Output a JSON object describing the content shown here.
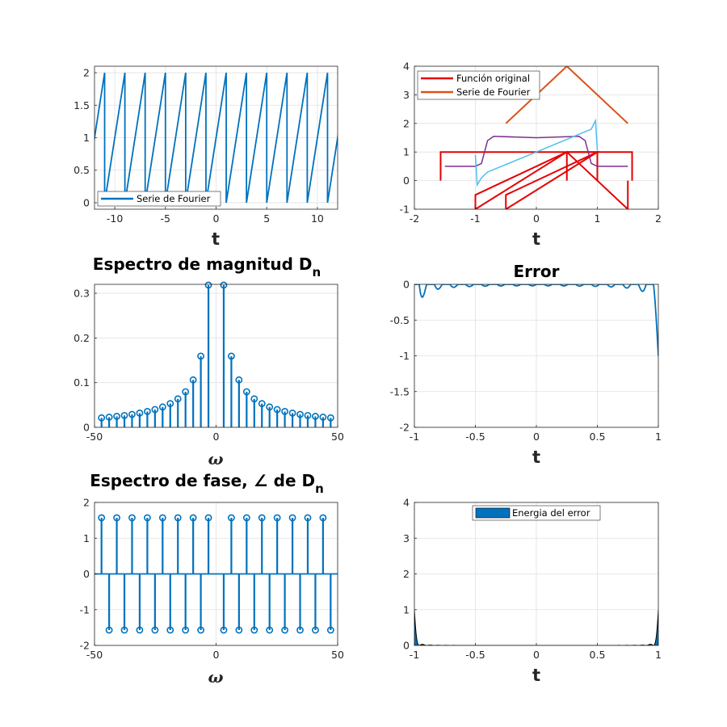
{
  "figure": {
    "colors": {
      "blue": "#0072bd",
      "red": "#e60000",
      "orange": "#d95319",
      "purple": "#7e2f8e",
      "cyan": "#4dbeee",
      "grid": "#e0e0e0",
      "axis": "#262626"
    }
  },
  "chart_data": [
    {
      "id": "serie",
      "type": "line",
      "title": "",
      "xlabel": "t",
      "ylabel": "",
      "xlim": [
        -12,
        12
      ],
      "ylim": [
        -0.1,
        2.1
      ],
      "xticks": [
        -10,
        -5,
        0,
        5,
        10
      ],
      "xtick_labels": [
        "-10",
        "-5",
        "0",
        "5",
        "10"
      ],
      "yticks": [
        0,
        0.5,
        1,
        1.5,
        2
      ],
      "ytick_labels": [
        "0",
        "0.5",
        "1",
        "1.5",
        "2"
      ],
      "grid": true,
      "legend": {
        "location": "bottom-left",
        "entries": [
          "Serie de Fourier"
        ]
      },
      "series": [
        {
          "name": "Serie de Fourier",
          "kind": "sawtooth",
          "period": 2,
          "color": "#0072bd",
          "min": 0,
          "max": 2
        }
      ]
    },
    {
      "id": "original",
      "type": "line",
      "title": "",
      "xlabel": "t",
      "ylabel": "",
      "xlim": [
        -2,
        2
      ],
      "ylim": [
        -1,
        4
      ],
      "xticks": [
        -2,
        -1,
        0,
        1,
        2
      ],
      "xtick_labels": [
        "-2",
        "-1",
        "0",
        "1",
        "2"
      ],
      "yticks": [
        -1,
        0,
        1,
        2,
        3,
        4
      ],
      "ytick_labels": [
        "-1",
        "0",
        "1",
        "2",
        "3",
        "4"
      ],
      "grid": true,
      "legend": {
        "location": "top-left",
        "entries": [
          "Función original",
          "Serie de Fourier"
        ]
      },
      "series": [
        {
          "name": "Función original",
          "color": "#e60000",
          "segments": [
            {
              "x": [
                -1.57,
                -1.57,
                1.57,
                1.57
              ],
              "y": [
                0,
                1,
                1,
                0
              ]
            },
            {
              "x": [
                -1,
                -1,
                0.5,
                0.5
              ],
              "y": [
                -1,
                -0.5,
                1,
                0
              ]
            },
            {
              "x": [
                -0.5,
                -0.5,
                1,
                1
              ],
              "y": [
                -1,
                -0.5,
                1,
                0
              ]
            },
            {
              "x": [
                -1,
                0.5,
                1.5,
                1.5
              ],
              "y": [
                -1,
                1,
                -1,
                0
              ]
            },
            {
              "x": [
                -0.5,
                1,
                0.5
              ],
              "y": [
                -1,
                1,
                1
              ]
            }
          ]
        },
        {
          "name": "Serie de Fourier",
          "color": "#d95319",
          "segments": [
            {
              "x": [
                -0.5,
                0.5,
                1.5
              ],
              "y": [
                2,
                4,
                2
              ]
            }
          ]
        },
        {
          "name": "",
          "color": "#7e2f8e",
          "segments": [
            {
              "x": [
                -1.5,
                -1.0,
                -0.9,
                -0.8,
                -0.7,
                0,
                0.7,
                0.8,
                0.9,
                1.0,
                1.5
              ],
              "y": [
                0.5,
                0.5,
                0.6,
                1.4,
                1.55,
                1.5,
                1.55,
                1.4,
                0.6,
                0.5,
                0.5
              ]
            }
          ]
        },
        {
          "name": "",
          "color": "#4dbeee",
          "segments": [
            {
              "x": [
                -1.0,
                -0.97,
                -0.9,
                -0.8,
                0,
                0.9,
                0.97,
                1.0
              ],
              "y": [
                0.9,
                -0.15,
                0.1,
                0.3,
                1.0,
                1.8,
                2.1,
                1.05
              ]
            }
          ]
        }
      ]
    },
    {
      "id": "magnitud",
      "type": "stem",
      "title": "Espectro de magnitud D",
      "title_sub": "n",
      "xlabel": "ω",
      "ylabel": "",
      "xlim": [
        -50,
        50
      ],
      "ylim": [
        0,
        0.32
      ],
      "xticks": [
        -50,
        0,
        50
      ],
      "xtick_labels": [
        "-50",
        "0",
        "50"
      ],
      "yticks": [
        0,
        0.1,
        0.2,
        0.3
      ],
      "ytick_labels": [
        "0",
        "0.1",
        "0.2",
        "0.3"
      ],
      "grid": true,
      "x": [
        -47.12,
        -43.98,
        -40.84,
        -37.7,
        -34.56,
        -31.42,
        -28.27,
        -25.13,
        -21.99,
        -18.85,
        -15.71,
        -12.57,
        -9.42,
        -6.28,
        -3.14,
        3.14,
        6.28,
        9.42,
        12.57,
        15.71,
        18.85,
        21.99,
        25.13,
        28.27,
        31.42,
        34.56,
        37.7,
        40.84,
        43.98,
        47.12
      ],
      "values": [
        0.0212,
        0.0227,
        0.0245,
        0.0265,
        0.0289,
        0.0318,
        0.0354,
        0.0398,
        0.0455,
        0.0531,
        0.0637,
        0.0796,
        0.1061,
        0.1592,
        0.3183,
        0.3183,
        0.1592,
        0.1061,
        0.0796,
        0.0637,
        0.0531,
        0.0455,
        0.0398,
        0.0354,
        0.0318,
        0.0289,
        0.0265,
        0.0245,
        0.0227,
        0.0212
      ]
    },
    {
      "id": "error",
      "type": "line",
      "title": "Error",
      "xlabel": "t",
      "ylabel": "",
      "xlim": [
        -1,
        1
      ],
      "ylim": [
        -2,
        0
      ],
      "xticks": [
        -1,
        -0.5,
        0,
        0.5,
        1
      ],
      "xtick_labels": [
        "-1",
        "-0.5",
        "0",
        "0.5",
        "1"
      ],
      "yticks": [
        -2,
        -1.5,
        -1,
        -0.5,
        0
      ],
      "ytick_labels": [
        "-2",
        "-1.5",
        "-1",
        "-0.5",
        "0"
      ],
      "grid": true,
      "series": [
        {
          "name": "Error",
          "kind": "gibbs_error",
          "harmonics": 15,
          "color": "#0072bd"
        }
      ]
    },
    {
      "id": "fase",
      "type": "stem",
      "title": "Espectro de fase, ∠ de D",
      "title_sub": "n",
      "xlabel": "ω",
      "ylabel": "",
      "xlim": [
        -50,
        50
      ],
      "ylim": [
        -2,
        2
      ],
      "xticks": [
        -50,
        0,
        50
      ],
      "xtick_labels": [
        "-50",
        "0",
        "50"
      ],
      "yticks": [
        -2,
        -1,
        0,
        1,
        2
      ],
      "ytick_labels": [
        "-2",
        "-1",
        "0",
        "1",
        "2"
      ],
      "grid": true,
      "x": [
        -47.12,
        -43.98,
        -40.84,
        -37.7,
        -34.56,
        -31.42,
        -28.27,
        -25.13,
        -21.99,
        -18.85,
        -15.71,
        -12.57,
        -9.42,
        -6.28,
        -3.14,
        3.14,
        6.28,
        9.42,
        12.57,
        15.71,
        18.85,
        21.99,
        25.13,
        28.27,
        31.42,
        34.56,
        37.7,
        40.84,
        43.98,
        47.12
      ],
      "values": [
        1.5708,
        -1.5708,
        1.5708,
        -1.5708,
        1.5708,
        -1.5708,
        1.5708,
        -1.5708,
        1.5708,
        -1.5708,
        1.5708,
        -1.5708,
        1.5708,
        -1.5708,
        1.5708,
        -1.5708,
        1.5708,
        -1.5708,
        1.5708,
        -1.5708,
        1.5708,
        -1.5708,
        1.5708,
        -1.5708,
        1.5708,
        -1.5708,
        1.5708,
        -1.5708,
        1.5708,
        -1.5708
      ]
    },
    {
      "id": "energia",
      "type": "area",
      "title": "",
      "xlabel": "t",
      "ylabel": "",
      "xlim": [
        -1,
        1
      ],
      "ylim": [
        0,
        4
      ],
      "xticks": [
        -1,
        -0.5,
        0,
        0.5,
        1
      ],
      "xtick_labels": [
        "-1",
        "-0.5",
        "0",
        "0.5",
        "1"
      ],
      "yticks": [
        0,
        1,
        2,
        3,
        4
      ],
      "ytick_labels": [
        "0",
        "1",
        "2",
        "3",
        "4"
      ],
      "grid": true,
      "legend": {
        "location": "top-center",
        "entries": [
          "Energia del error"
        ]
      },
      "series": [
        {
          "name": "Energia del error",
          "kind": "error_squared",
          "harmonics": 15,
          "color": "#0072bd"
        }
      ]
    }
  ]
}
